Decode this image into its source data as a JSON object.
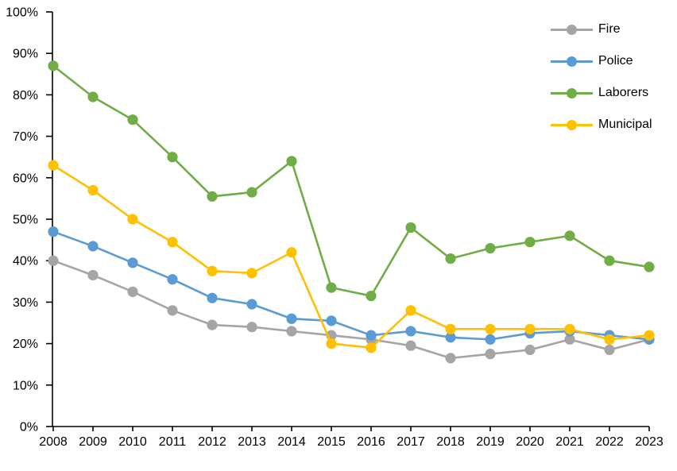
{
  "chart_data": {
    "type": "line",
    "title": "",
    "xlabel": "",
    "ylabel": "",
    "grid": "off",
    "legend_position": "top-right",
    "axis_color": "#000000",
    "text_color": "#000000",
    "ylim": [
      0,
      100
    ],
    "y_tick_step": 10,
    "y_tick_labels": [
      "0%",
      "10%",
      "20%",
      "30%",
      "40%",
      "50%",
      "60%",
      "70%",
      "80%",
      "90%",
      "100%"
    ],
    "categories": [
      "2008",
      "2009",
      "2010",
      "2011",
      "2012",
      "2013",
      "2014",
      "2015",
      "2016",
      "2017",
      "2018",
      "2019",
      "2020",
      "2021",
      "2022",
      "2023"
    ],
    "series": [
      {
        "name": "Fire",
        "color": "#A5A5A5",
        "marker": "circle",
        "values": [
          40,
          36.5,
          32.5,
          28,
          24.5,
          24,
          23,
          22,
          21,
          19.5,
          16.5,
          17.5,
          18.5,
          21,
          18.5,
          21
        ]
      },
      {
        "name": "Police",
        "color": "#5B9BD5",
        "marker": "circle",
        "values": [
          47,
          43.5,
          39.5,
          35.5,
          31,
          29.5,
          26,
          25.5,
          22,
          23,
          21.5,
          21,
          22.5,
          23,
          22,
          21
        ]
      },
      {
        "name": "Laborers",
        "color": "#70AD47",
        "marker": "circle",
        "values": [
          87,
          79.5,
          74,
          65,
          55.5,
          56.5,
          64,
          33.5,
          31.5,
          48,
          40.5,
          43,
          44.5,
          46,
          40,
          38.5
        ]
      },
      {
        "name": "Municipal",
        "color": "#FFC000",
        "marker": "circle",
        "values": [
          63,
          57,
          50,
          44.5,
          37.5,
          37,
          42,
          20,
          19,
          28,
          23.5,
          23.5,
          23.5,
          23.5,
          21,
          22
        ]
      }
    ]
  }
}
